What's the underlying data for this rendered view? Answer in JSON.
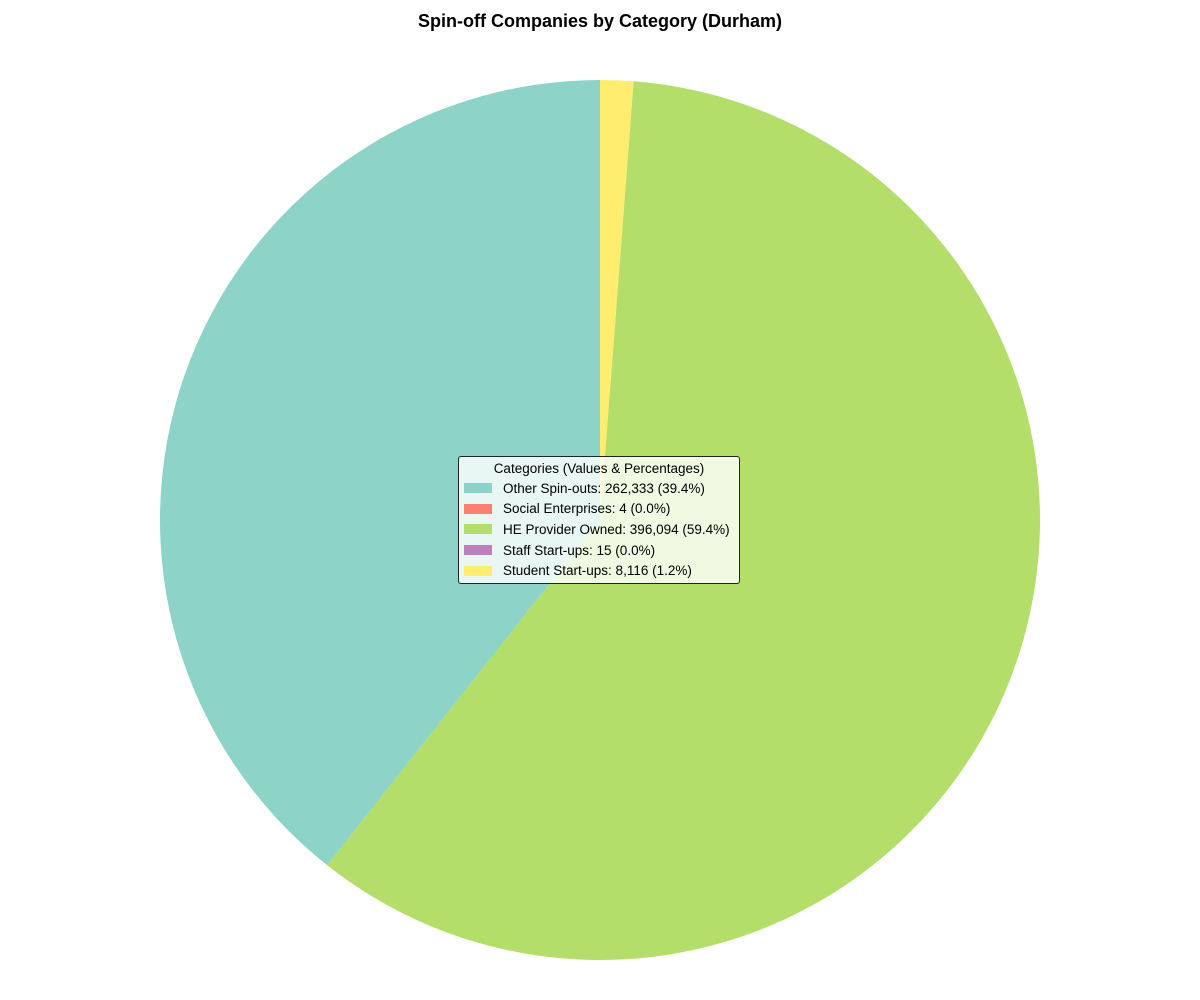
{
  "chart_data": {
    "type": "pie",
    "title": "Spin-off Companies by Category (Durham)",
    "start_angle_deg": 90,
    "direction": "counterclockwise",
    "slices": [
      {
        "label": "Other Spin-outs",
        "value": 262333,
        "percent": "39.4%",
        "color": "#8dd3c7",
        "legend_text": "Other Spin-outs: 262,333 (39.4%)"
      },
      {
        "label": "Social Enterprises",
        "value": 4,
        "percent": "0.0%",
        "color": "#fb8072",
        "legend_text": "Social Enterprises: 4 (0.0%)"
      },
      {
        "label": "HE Provider Owned",
        "value": 396094,
        "percent": "59.4%",
        "color": "#b3de69",
        "legend_text": "HE Provider Owned: 396,094 (59.4%)"
      },
      {
        "label": "Staff Start-ups",
        "value": 15,
        "percent": "0.0%",
        "color": "#bc80bd",
        "legend_text": "Staff Start-ups: 15 (0.0%)"
      },
      {
        "label": "Student Start-ups",
        "value": 8116,
        "percent": "1.2%",
        "color": "#ffed6f",
        "legend_text": "Student Start-ups: 8,116 (1.2%)"
      }
    ],
    "legend": {
      "title": "Categories (Values & Percentages)",
      "placement": "center"
    }
  }
}
